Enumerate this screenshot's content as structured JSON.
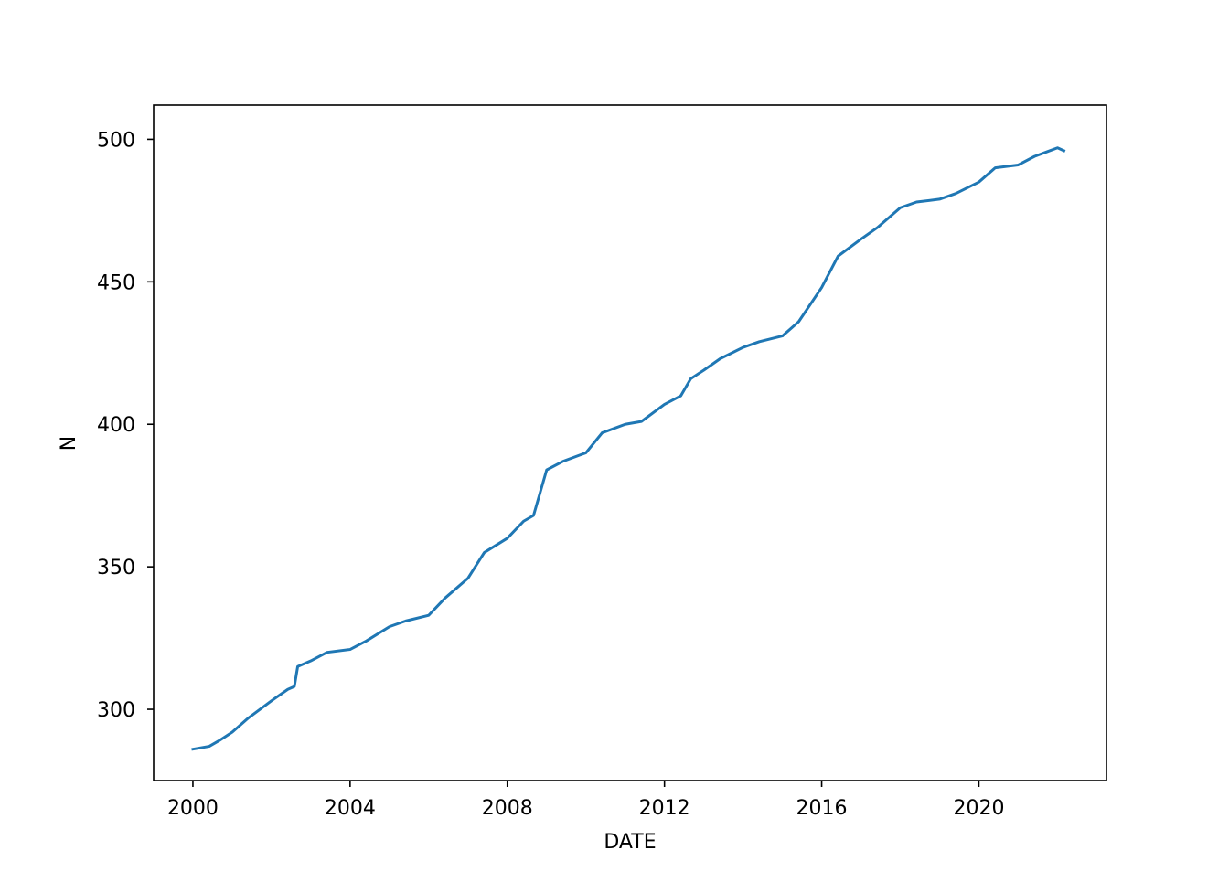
{
  "chart_data": {
    "type": "line",
    "title": "",
    "xlabel": "DATE",
    "ylabel": "N",
    "xlim": [
      "1999-01-01",
      "2023-04-01"
    ],
    "ylim": [
      275,
      512
    ],
    "x_ticks": [
      "2000",
      "2004",
      "2008",
      "2012",
      "2016",
      "2020"
    ],
    "y_ticks": [
      300,
      350,
      400,
      450,
      500
    ],
    "grid": false,
    "legend": "none",
    "series": [
      {
        "color": "#1f77b4",
        "points": [
          [
            "2000-01-01",
            286
          ],
          [
            "2000-06-01",
            287
          ],
          [
            "2000-09-01",
            289
          ],
          [
            "2001-01-01",
            292
          ],
          [
            "2001-06-01",
            297
          ],
          [
            "2002-01-01",
            303
          ],
          [
            "2002-06-01",
            307
          ],
          [
            "2002-08-01",
            308
          ],
          [
            "2002-09-01",
            315
          ],
          [
            "2003-01-01",
            317
          ],
          [
            "2003-06-01",
            320
          ],
          [
            "2004-01-01",
            321
          ],
          [
            "2004-06-01",
            324
          ],
          [
            "2005-01-01",
            329
          ],
          [
            "2005-06-01",
            331
          ],
          [
            "2006-01-01",
            333
          ],
          [
            "2006-06-01",
            339
          ],
          [
            "2007-01-01",
            346
          ],
          [
            "2007-06-01",
            355
          ],
          [
            "2008-01-01",
            360
          ],
          [
            "2008-06-01",
            366
          ],
          [
            "2008-09-01",
            368
          ],
          [
            "2009-01-01",
            384
          ],
          [
            "2009-06-01",
            387
          ],
          [
            "2010-01-01",
            390
          ],
          [
            "2010-06-01",
            397
          ],
          [
            "2011-01-01",
            400
          ],
          [
            "2011-06-01",
            401
          ],
          [
            "2012-01-01",
            407
          ],
          [
            "2012-06-01",
            410
          ],
          [
            "2012-09-01",
            416
          ],
          [
            "2013-01-01",
            419
          ],
          [
            "2013-06-01",
            423
          ],
          [
            "2014-01-01",
            427
          ],
          [
            "2014-06-01",
            429
          ],
          [
            "2015-01-01",
            431
          ],
          [
            "2015-06-01",
            436
          ],
          [
            "2016-01-01",
            448
          ],
          [
            "2016-06-01",
            459
          ],
          [
            "2017-01-01",
            465
          ],
          [
            "2017-06-01",
            469
          ],
          [
            "2018-01-01",
            476
          ],
          [
            "2018-06-01",
            478
          ],
          [
            "2019-01-01",
            479
          ],
          [
            "2019-06-01",
            481
          ],
          [
            "2020-01-01",
            485
          ],
          [
            "2020-06-01",
            490
          ],
          [
            "2021-01-01",
            491
          ],
          [
            "2021-06-01",
            494
          ],
          [
            "2022-01-01",
            497
          ],
          [
            "2022-03-01",
            496
          ]
        ]
      }
    ]
  }
}
